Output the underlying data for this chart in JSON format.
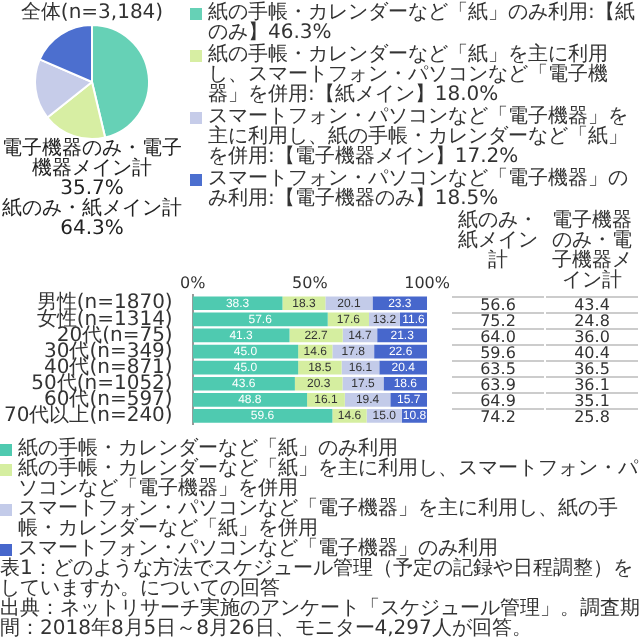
{
  "chart_data": [
    {
      "type": "pie",
      "categories": [
        "紙の手帳・カレンダーなど「紙」のみ利用",
        "紙の手帳・カレンダーなど「紙」を主に利用し、スマートフォン・パソコンなど「電子機器」を併用",
        "スマートフォン・パソコンなど「電子機器」を主に利用し、紙の手帳・カレンダーなど「紙」を併用",
        "スマートフォン・パソコンなど「電子機器」のみ利用"
      ],
      "values": [
        46.3,
        18.0,
        17.2,
        18.5
      ],
      "colors": [
        "#66d1b6",
        "#d7eea3",
        "#c6cce9",
        "#4c6fcf"
      ],
      "value_labels": [
        "【紙のみ】46.3%",
        "【紙メイン】18.0%",
        "【電子機器メイン】17.2%",
        "【電子機器のみ】18.5%"
      ],
      "annotations": [
        "全体(n=3,184)",
        "電子機器のみ・電子機器メイン計 35.7%",
        "紙のみ・紙メイン計 64.3%"
      ],
      "legend": "right"
    },
    {
      "type": "bar",
      "orientation": "horizontal",
      "stacked": true,
      "data_labels": true,
      "legend": "bottom",
      "categories": [
        "男性(n=1870)",
        "女性(n=1314)",
        "20代(n=75)",
        "30代(n=349)",
        "40代(n=871)",
        "50代(n=1052)",
        "60代(n=597)",
        "70代以上(n=240)"
      ],
      "series": [
        {
          "name": "紙の手帳・カレンダーなど「紙」のみ利用",
          "color": "#4fcab0",
          "values": [
            38.3,
            57.6,
            41.3,
            45.0,
            45.0,
            43.6,
            48.8,
            59.6
          ],
          "value_labels": [
            "38.3",
            "57.6",
            "41.3",
            "45.0",
            "45.0",
            "43.6",
            "48.8",
            "59.6"
          ]
        },
        {
          "name": "紙の手帳・カレンダーなど「紙」を主に利用し、スマートフォン・パソコンなど「電子機器」を併用",
          "color": "#d5eea0",
          "values": [
            18.3,
            17.6,
            22.7,
            14.6,
            18.5,
            20.3,
            16.1,
            14.6
          ],
          "value_labels": [
            "18.3",
            "17.6",
            "22.7",
            "14.6",
            "18.5",
            "20.3",
            "16.1",
            "14.6"
          ]
        },
        {
          "name": "スマートフォン・パソコンなど「電子機器」を主に利用し、紙の手帳・カレンダーなど「紙」を併用",
          "color": "#c3cbe9",
          "values": [
            20.1,
            13.2,
            14.7,
            17.8,
            16.1,
            17.5,
            19.4,
            15.0
          ],
          "value_labels": [
            "20.1",
            "13.2",
            "14.7",
            "17.8",
            "16.1",
            "17.5",
            "19.4",
            "15.0"
          ]
        },
        {
          "name": "スマートフォン・パソコンなど「電子機器」のみ利用",
          "color": "#4767cc",
          "values": [
            23.3,
            11.6,
            21.3,
            22.6,
            20.4,
            18.6,
            15.7,
            10.8
          ],
          "value_labels": [
            "23.3",
            "11.6",
            "21.3",
            "22.6",
            "20.4",
            "18.6",
            "15.7",
            "10.8"
          ]
        }
      ],
      "xlim": [
        0,
        100
      ],
      "xticks": [
        {
          "value": 0,
          "label": "0%"
        },
        {
          "value": 50,
          "label": "50%"
        },
        {
          "value": 100,
          "label": "100%"
        }
      ],
      "annotations": [
        "表1：どのような方法でスケジュール管理（予定の記録や日程調整）をしていますか。についての回答",
        "出典：ネットリサーチ実施のアンケート「スケジュール管理」。調査期間：2018年8月5日～8月26日、モニター4,297人が回答。"
      ]
    },
    {
      "type": "heatmap",
      "categories": [
        "紙のみ・紙メイン計",
        "電子機器のみ・電子機器メイン計"
      ],
      "y_categories": [
        null,
        null,
        null,
        null,
        null,
        null,
        null,
        null
      ],
      "data_labels": true,
      "cells": [
        [
          56.6,
          43.4
        ],
        [
          75.2,
          24.8
        ],
        [
          64.0,
          36.0
        ],
        [
          59.6,
          40.4
        ],
        [
          63.5,
          36.5
        ],
        [
          63.9,
          36.1
        ],
        [
          64.9,
          35.1
        ],
        [
          74.2,
          25.8
        ]
      ],
      "cell_labels": [
        [
          "56.6",
          "43.4"
        ],
        [
          "75.2",
          "24.8"
        ],
        [
          "64.0",
          "36.0"
        ],
        [
          "59.6",
          "40.4"
        ],
        [
          "63.5",
          "36.5"
        ],
        [
          "63.9",
          "36.1"
        ],
        [
          "64.9",
          "35.1"
        ],
        [
          "74.2",
          "25.8"
        ]
      ]
    }
  ]
}
